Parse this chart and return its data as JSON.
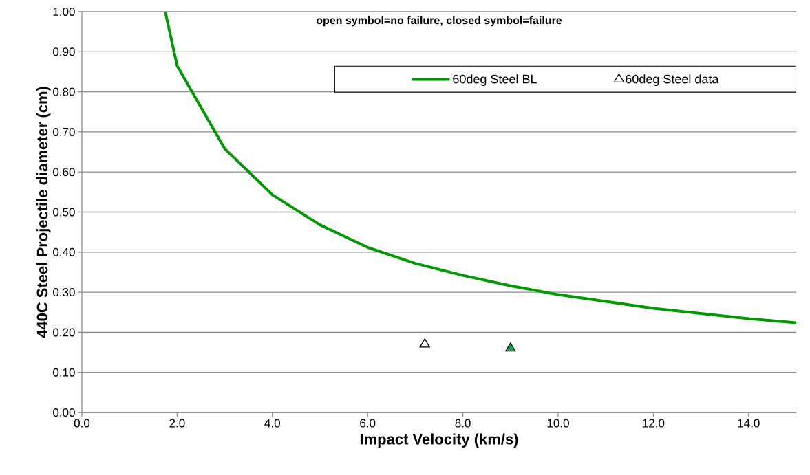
{
  "chart_data": {
    "type": "line",
    "subtitle": "open symbol=no failure, closed symbol=failure",
    "xlabel": "Impact Velocity (km/s)",
    "ylabel": "440C Steel Projectile diameter (cm)",
    "series": [
      {
        "name": "60deg Steel BL",
        "color": "#009900",
        "marker": "none",
        "x": [
          1.75,
          2,
          3,
          4,
          5,
          6,
          7,
          8,
          9,
          10,
          12,
          14,
          15
        ],
        "values": [
          1.0,
          0.865,
          0.658,
          0.543,
          0.468,
          0.412,
          0.372,
          0.342,
          0.316,
          0.294,
          0.26,
          0.234,
          0.224
        ]
      },
      {
        "name": "60deg Steel data",
        "type": "scatter",
        "marker": "triangle",
        "colors": [
          "#ffffff",
          "#00b050"
        ],
        "x": [
          7.2,
          9.0
        ],
        "values": [
          0.17,
          0.16
        ]
      }
    ],
    "xlim": [
      0,
      15
    ],
    "ylim": [
      0,
      1
    ],
    "xticks": [
      {
        "value": 0,
        "label": "0.0"
      },
      {
        "value": 2,
        "label": "2.0"
      },
      {
        "value": 4,
        "label": "4.0"
      },
      {
        "value": 6,
        "label": "6.0"
      },
      {
        "value": 8,
        "label": "8.0"
      },
      {
        "value": 10,
        "label": "10.0"
      },
      {
        "value": 12,
        "label": "12.0"
      },
      {
        "value": 14,
        "label": "14.0"
      }
    ],
    "yticks": [
      {
        "value": 0,
        "label": "0.00"
      },
      {
        "value": 0.1,
        "label": "0.10"
      },
      {
        "value": 0.2,
        "label": "0.20"
      },
      {
        "value": 0.3,
        "label": "0.30"
      },
      {
        "value": 0.4,
        "label": "0.40"
      },
      {
        "value": 0.5,
        "label": "0.50"
      },
      {
        "value": 0.6,
        "label": "0.60"
      },
      {
        "value": 0.7,
        "label": "0.70"
      },
      {
        "value": 0.8,
        "label": "0.80"
      },
      {
        "value": 0.9,
        "label": "0.90"
      },
      {
        "value": 1,
        "label": "1.00"
      }
    ],
    "grid": "y",
    "legend": "top right"
  }
}
